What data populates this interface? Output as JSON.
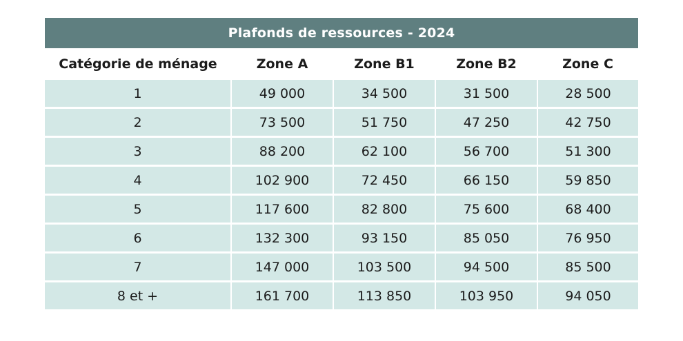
{
  "title": "Plafonds de ressources - 2024",
  "columns": [
    "Catégorie de ménage",
    "Zone A",
    "Zone B1",
    "Zone B2",
    "Zone C"
  ],
  "rows": [
    [
      "1",
      "49 000",
      "34 500",
      "31 500",
      "28 500"
    ],
    [
      "2",
      "73 500",
      "51 750",
      "47 250",
      "42 750"
    ],
    [
      "3",
      "88 200",
      "62 100",
      "56 700",
      "51 300"
    ],
    [
      "4",
      "102 900",
      "72 450",
      "66 150",
      "59 850"
    ],
    [
      "5",
      "117 600",
      "82 800",
      "75 600",
      "68 400"
    ],
    [
      "6",
      "132 300",
      "93 150",
      "85 050",
      "76 950"
    ],
    [
      "7",
      "147 000",
      "103 500",
      "94 500",
      "85 500"
    ],
    [
      "8 et +",
      "161 700",
      "113 850",
      "103 950",
      "94 050"
    ]
  ],
  "colors": {
    "header_bg": "#5f7f80",
    "header_text": "#ffffff",
    "cell_bg": "#d3e8e6"
  }
}
